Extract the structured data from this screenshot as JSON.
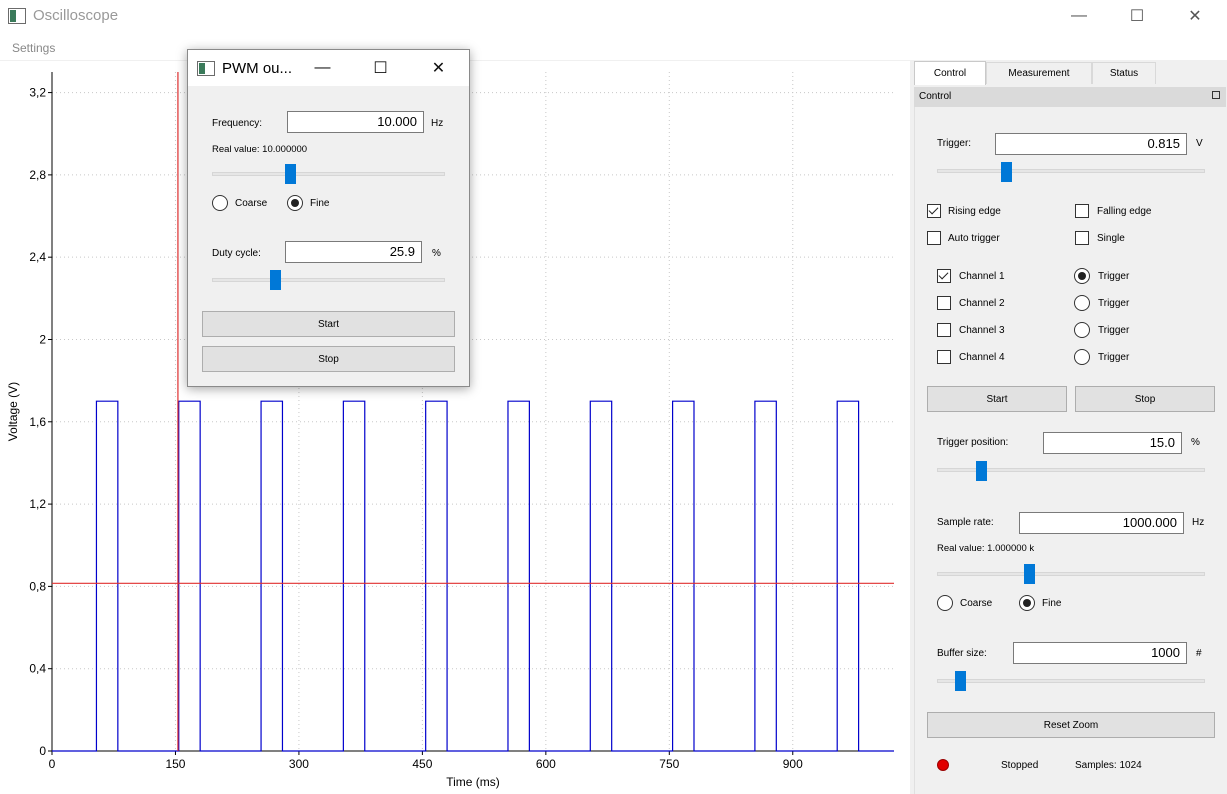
{
  "window": {
    "title": "Oscilloscope",
    "minimize": "—",
    "maximize": "☐",
    "close": "✕"
  },
  "menu": {
    "settings": "Settings"
  },
  "chart_data": {
    "type": "line",
    "xlabel": "Time (ms)",
    "ylabel": "Voltage (V)",
    "xlim": [
      0,
      1023
    ],
    "ylim": [
      0,
      3.3
    ],
    "x_ticks": [
      0,
      150,
      300,
      450,
      600,
      750,
      900
    ],
    "x_tick_labels": [
      "0",
      "150",
      "300",
      "450",
      "600",
      "750",
      "900"
    ],
    "y_ticks": [
      0,
      0.4,
      0.8,
      1.2,
      1.6,
      2.0,
      2.4,
      2.8,
      3.2
    ],
    "y_tick_labels": [
      "0",
      "0,4",
      "0,8",
      "1,2",
      "1,6",
      "2",
      "2,4",
      "2,8",
      "3,2"
    ],
    "grid": true,
    "series": [
      {
        "color": "#0000cc",
        "signal": "pwm",
        "period_ms": 100,
        "first_rise_ms": 54,
        "high_ms": 26,
        "high_v": 1.7,
        "low_v": 0.0,
        "pulses": 10
      }
    ],
    "trigger_level_v": 0.815,
    "trigger_position_ms": 153,
    "trigger_color": "#e03030"
  },
  "tabs": [
    {
      "label": "Control",
      "active": true
    },
    {
      "label": "Measurement",
      "active": false
    },
    {
      "label": "Status",
      "active": false
    }
  ],
  "dock": {
    "title": "Control",
    "float_icon": "restore-icon"
  },
  "control": {
    "trigger_label": "Trigger:",
    "trigger_value": "0.815",
    "trigger_unit": "V",
    "trigger_slider_fraction": 0.25,
    "rising_edge": "Rising edge",
    "rising_checked": true,
    "falling_edge": "Falling edge",
    "falling_checked": false,
    "auto_trigger": "Auto trigger",
    "auto_checked": false,
    "single": "Single",
    "single_checked": false,
    "channels": [
      {
        "label": "Channel 1",
        "checked": true,
        "trigger_label": "Trigger",
        "trigger_selected": true
      },
      {
        "label": "Channel 2",
        "checked": false,
        "trigger_label": "Trigger",
        "trigger_selected": false
      },
      {
        "label": "Channel 3",
        "checked": false,
        "trigger_label": "Trigger",
        "trigger_selected": false
      },
      {
        "label": "Channel 4",
        "checked": false,
        "trigger_label": "Trigger",
        "trigger_selected": false
      }
    ],
    "start": "Start",
    "stop": "Stop",
    "trigger_position_label": "Trigger position:",
    "trigger_position_value": "15.0",
    "trigger_position_unit": "%",
    "trigger_position_slider_fraction": 0.15,
    "sample_rate_label": "Sample rate:",
    "sample_rate_value": "1000.000",
    "sample_rate_unit": "Hz",
    "sample_rate_real": "Real value: 1.000000 k",
    "sample_rate_slider_fraction": 0.34,
    "coarse": "Coarse",
    "fine": "Fine",
    "fine_selected": true,
    "buffer_label": "Buffer size:",
    "buffer_value": "1000",
    "buffer_unit": "#",
    "buffer_slider_fraction": 0.07,
    "reset_zoom": "Reset Zoom",
    "status": "Stopped",
    "samples": "Samples: 1024",
    "status_color": "#e00000"
  },
  "pwm": {
    "title": "PWM ou...",
    "minimize": "—",
    "maximize": "☐",
    "close": "✕",
    "frequency_label": "Frequency:",
    "frequency_value": "10.000",
    "frequency_unit": "Hz",
    "real_value": "Real value: 10.000000",
    "frequency_slider_fraction": 0.33,
    "coarse": "Coarse",
    "fine": "Fine",
    "fine_selected": true,
    "duty_label": "Duty cycle:",
    "duty_value": "25.9",
    "duty_unit": "%",
    "duty_slider_fraction": 0.26,
    "start": "Start",
    "stop": "Stop"
  }
}
